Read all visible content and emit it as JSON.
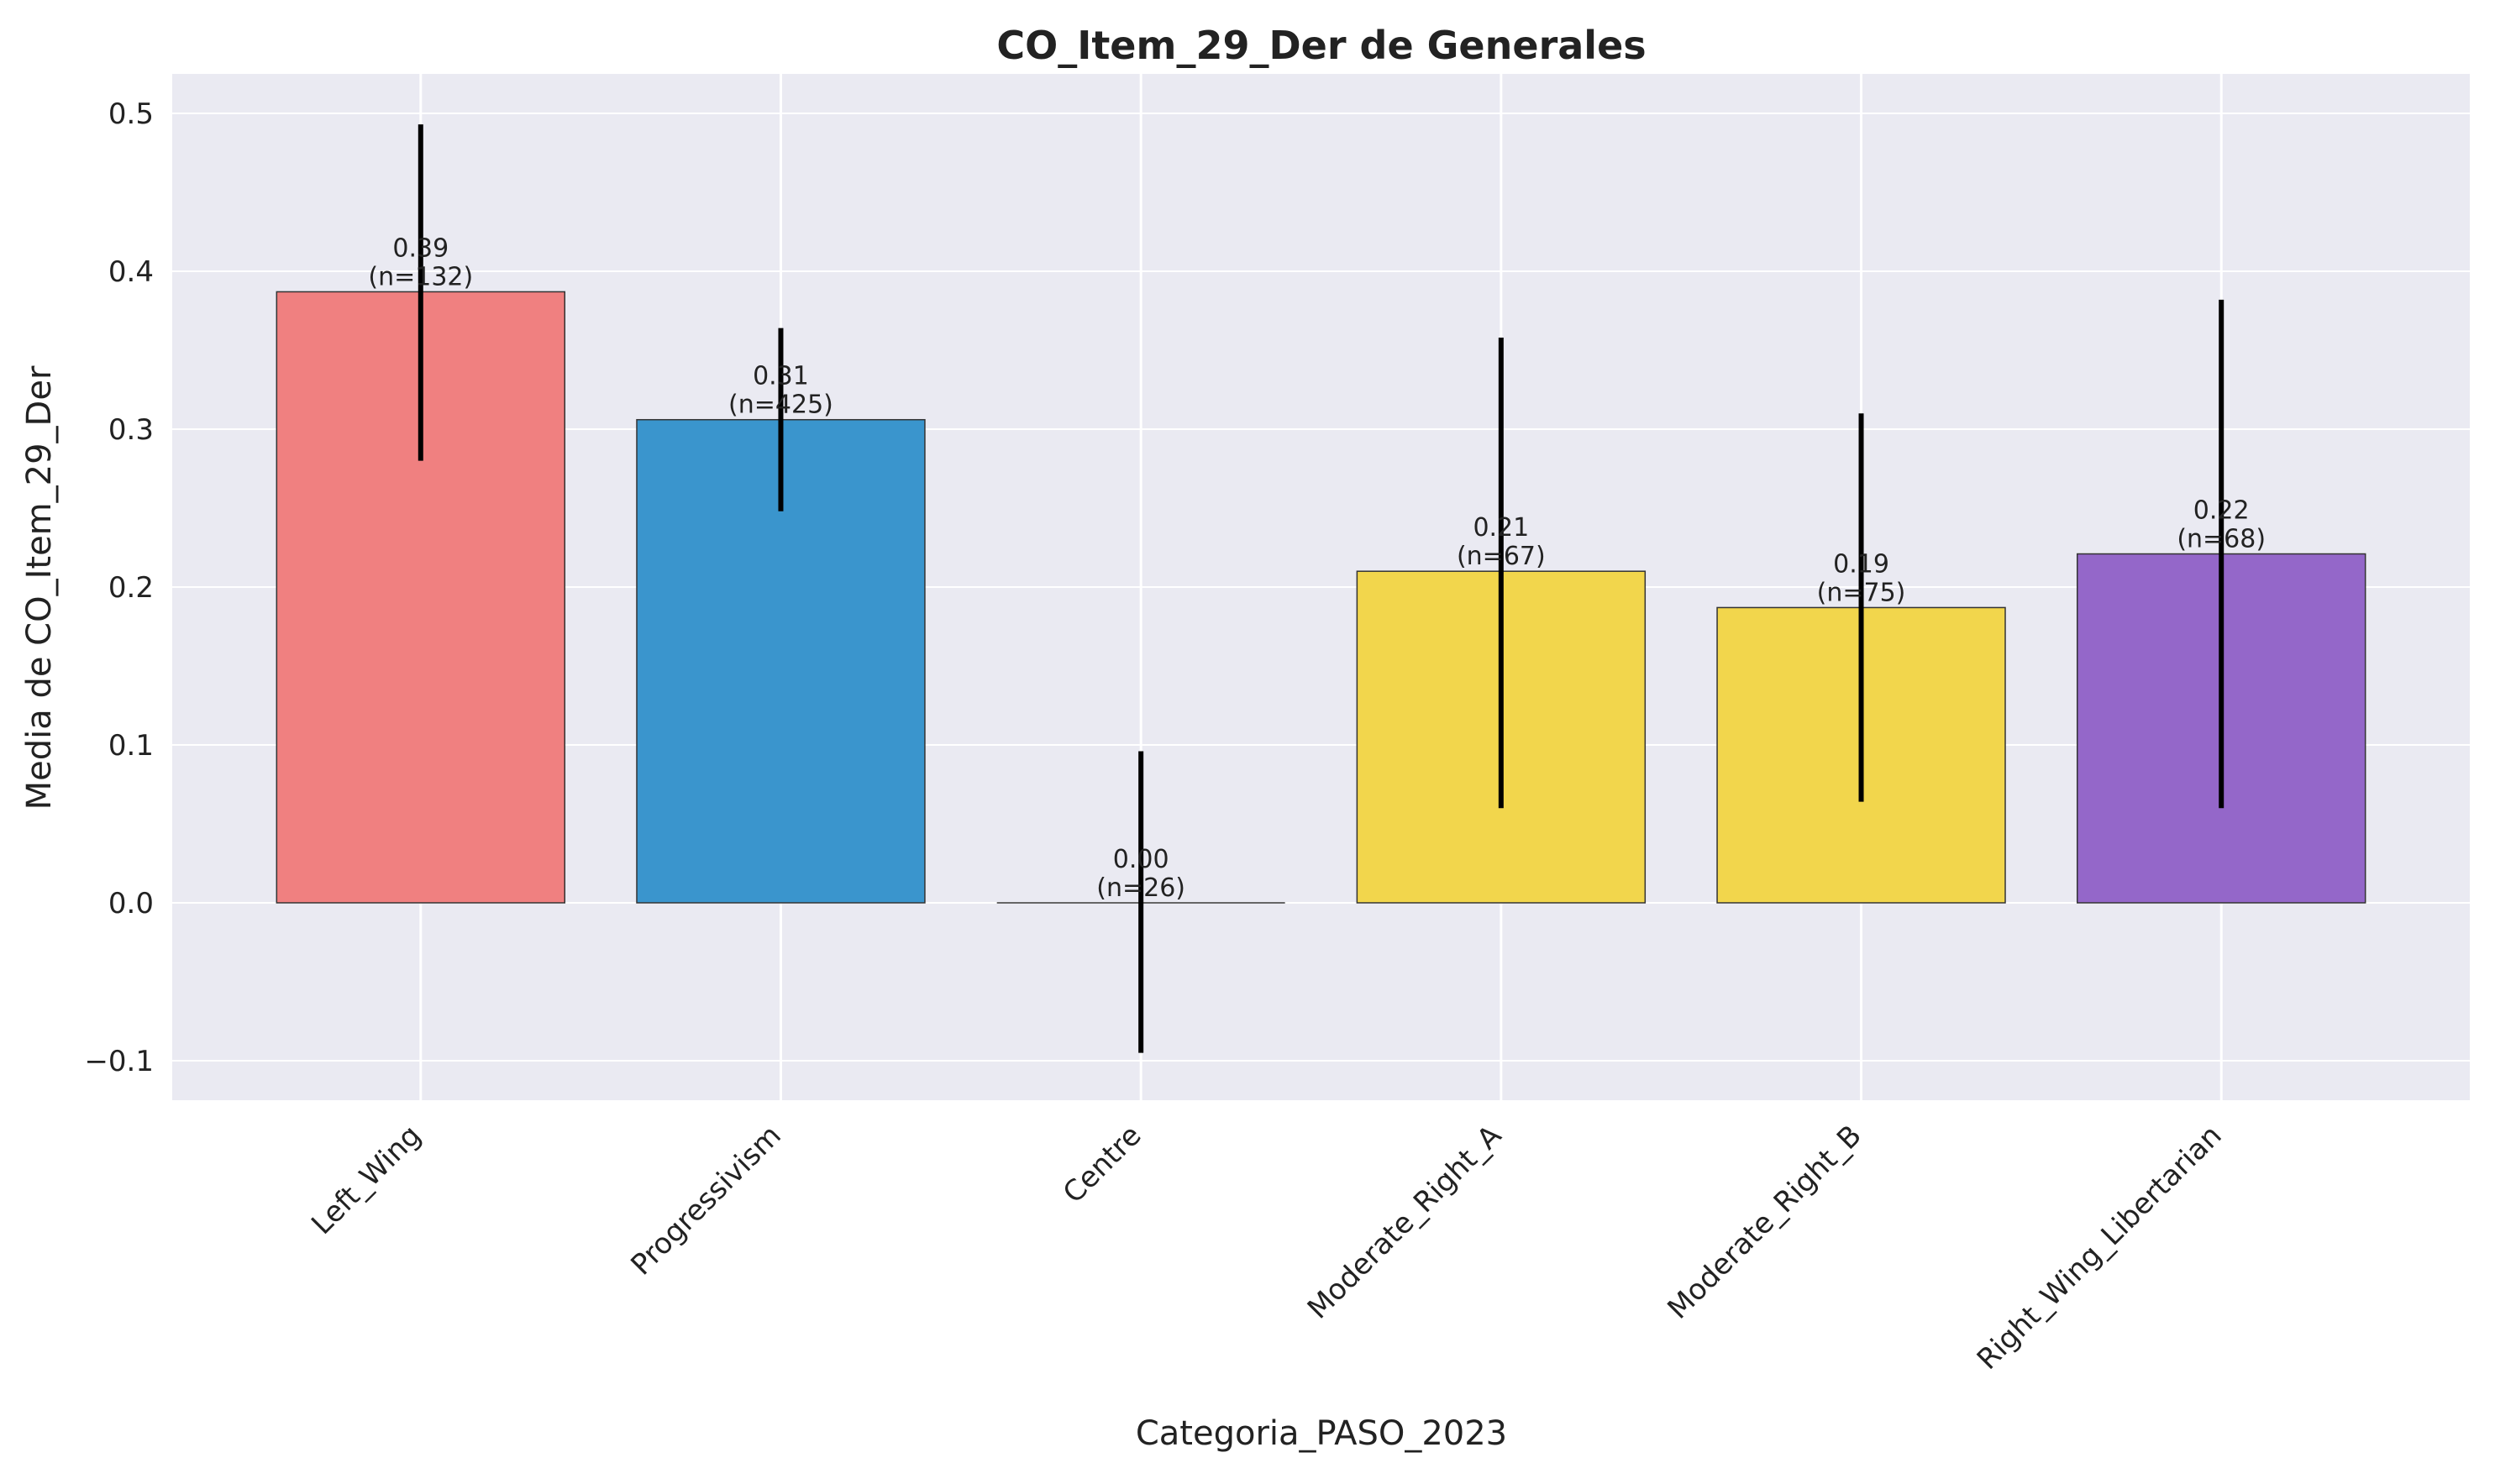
{
  "chart_data": {
    "type": "bar",
    "title": "CO_Item_29_Der de Generales",
    "xlabel": "Categoria_PASO_2023",
    "ylabel": "Media de CO_Item_29_Der",
    "ylim": [
      -0.125,
      0.525
    ],
    "yticks": [
      -0.1,
      0.0,
      0.1,
      0.2,
      0.3,
      0.4,
      0.5
    ],
    "ytick_labels": [
      "−0.1",
      "0.0",
      "0.1",
      "0.2",
      "0.3",
      "0.4",
      "0.5"
    ],
    "grid": true,
    "categories": [
      "Left_Wing",
      "Progressivism",
      "Centre",
      "Moderate_Right_A",
      "Moderate_Right_B",
      "Right_Wing_Libertarian"
    ],
    "values": [
      0.387,
      0.306,
      0.0,
      0.21,
      0.187,
      0.221
    ],
    "error_low": [
      0.28,
      0.248,
      -0.095,
      0.06,
      0.064,
      0.06
    ],
    "error_high": [
      0.493,
      0.364,
      0.096,
      0.358,
      0.31,
      0.382
    ],
    "value_labels": [
      "0.39",
      "0.31",
      "0.00",
      "0.21",
      "0.19",
      "0.22"
    ],
    "n_labels": [
      "(n=132)",
      "(n=425)",
      "(n=26)",
      "(n=67)",
      "(n=75)",
      "(n=68)"
    ],
    "colors": [
      "#f08080",
      "#3a95cd",
      "#9a9a9a",
      "#f2d64c",
      "#f2d64c",
      "#9467c9"
    ],
    "background_color": "#eaeaf2"
  }
}
